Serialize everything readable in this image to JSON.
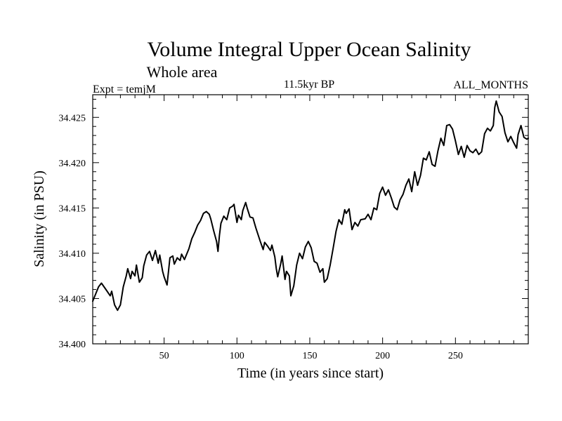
{
  "chart_data": {
    "type": "line",
    "title": "Volume Integral Upper Ocean Salinity",
    "subtitle": "Whole area",
    "experiment_label": "Expt = temjM",
    "period_label": "11.5kyr BP",
    "months_label": "ALL_MONTHS",
    "xlabel": "Time (in years since start)",
    "ylabel": "Salinity (in PSU)",
    "xlim": [
      1,
      300
    ],
    "ylim": [
      34.4,
      34.4275
    ],
    "x_ticks": [
      50,
      100,
      150,
      200,
      250
    ],
    "x_tick_labels": [
      "50",
      "100",
      "150",
      "200",
      "250"
    ],
    "y_ticks": [
      34.4,
      34.405,
      34.41,
      34.415,
      34.42,
      34.425
    ],
    "y_tick_labels": [
      "34.400",
      "34.405",
      "34.410",
      "34.415",
      "34.420",
      "34.425"
    ],
    "grid": false,
    "line_color": "#000000",
    "series": [
      {
        "name": "Salinity",
        "x": [
          1,
          5,
          7,
          10,
          13,
          14,
          16,
          18,
          20,
          22,
          24,
          25,
          27,
          28,
          30,
          31,
          33,
          35,
          36,
          38,
          40,
          42,
          44,
          46,
          47,
          49,
          50,
          52,
          54,
          56,
          57,
          59,
          61,
          62,
          64,
          67,
          69,
          71,
          73,
          75,
          77,
          79,
          81,
          82,
          84,
          86,
          87,
          88,
          89,
          91,
          93,
          95,
          97,
          98,
          99,
          100,
          101,
          103,
          104,
          106,
          107,
          109,
          111,
          113,
          116,
          118,
          119,
          121,
          123,
          124,
          126,
          127,
          128,
          130,
          131,
          133,
          134,
          136,
          137,
          139,
          141,
          143,
          145,
          147,
          149,
          151,
          153,
          155,
          157,
          159,
          160,
          162,
          164,
          166,
          168,
          170,
          172,
          174,
          175,
          177,
          179,
          181,
          183,
          185,
          188,
          190,
          192,
          194,
          196,
          198,
          200,
          202,
          204,
          206,
          208,
          210,
          212,
          214,
          216,
          218,
          220,
          222,
          224,
          226,
          228,
          230,
          232,
          234,
          236,
          238,
          240,
          242,
          244,
          246,
          248,
          250,
          252,
          254,
          256,
          258,
          260,
          262,
          264,
          266,
          268,
          270,
          272,
          274,
          276,
          277,
          278,
          280,
          282,
          284,
          286,
          288,
          290,
          292,
          293,
          295,
          297,
          299,
          300
        ],
        "values": [
          34.4047,
          34.4063,
          34.4067,
          34.406,
          34.4053,
          34.4058,
          34.4043,
          34.4037,
          34.4043,
          34.4063,
          34.4075,
          34.4083,
          34.4072,
          34.408,
          34.4075,
          34.4087,
          34.4068,
          34.4073,
          34.4086,
          34.4098,
          34.4102,
          34.4092,
          34.4103,
          34.4089,
          34.4098,
          34.408,
          34.4074,
          34.4065,
          34.4095,
          34.4097,
          34.4088,
          34.4095,
          34.4092,
          34.4099,
          34.4093,
          34.4105,
          34.4116,
          34.4123,
          34.4131,
          34.4136,
          34.4144,
          34.4146,
          34.4143,
          34.4138,
          34.4125,
          34.4113,
          34.4102,
          34.412,
          34.4133,
          34.4141,
          34.4137,
          34.415,
          34.4152,
          34.4154,
          34.4144,
          34.4134,
          34.4142,
          34.4137,
          34.4147,
          34.4156,
          34.415,
          34.414,
          34.4139,
          34.4128,
          34.4113,
          34.4104,
          34.4112,
          34.4108,
          34.4103,
          34.4109,
          34.4096,
          34.4083,
          34.4074,
          34.4088,
          34.4097,
          34.4071,
          34.408,
          34.4075,
          34.4053,
          34.4064,
          34.4087,
          34.41,
          34.4094,
          34.4107,
          34.4113,
          34.4106,
          34.4091,
          34.4089,
          34.4079,
          34.4083,
          34.4068,
          34.4072,
          34.4087,
          34.4105,
          34.4124,
          34.4137,
          34.4132,
          34.4148,
          34.4144,
          34.4149,
          34.4126,
          34.4134,
          34.413,
          34.4137,
          34.4138,
          34.4143,
          34.4137,
          34.415,
          34.4148,
          34.4166,
          34.4173,
          34.4164,
          34.417,
          34.4161,
          34.4151,
          34.4148,
          34.4159,
          34.4165,
          34.4175,
          34.4182,
          34.4168,
          34.419,
          34.4175,
          34.4186,
          34.4205,
          34.4203,
          34.4212,
          34.4198,
          34.4196,
          34.4213,
          34.4227,
          34.4219,
          34.4241,
          34.4242,
          34.4237,
          34.4224,
          34.4209,
          34.4218,
          34.4206,
          34.4219,
          34.4213,
          34.4211,
          34.4215,
          34.4209,
          34.4212,
          34.4232,
          34.4238,
          34.4235,
          34.4241,
          34.4261,
          34.4268,
          34.4256,
          34.4251,
          34.4233,
          34.4223,
          34.4229,
          34.4222,
          34.4216,
          34.4231,
          34.4241,
          34.4228,
          34.4226,
          34.4227
        ]
      }
    ]
  }
}
